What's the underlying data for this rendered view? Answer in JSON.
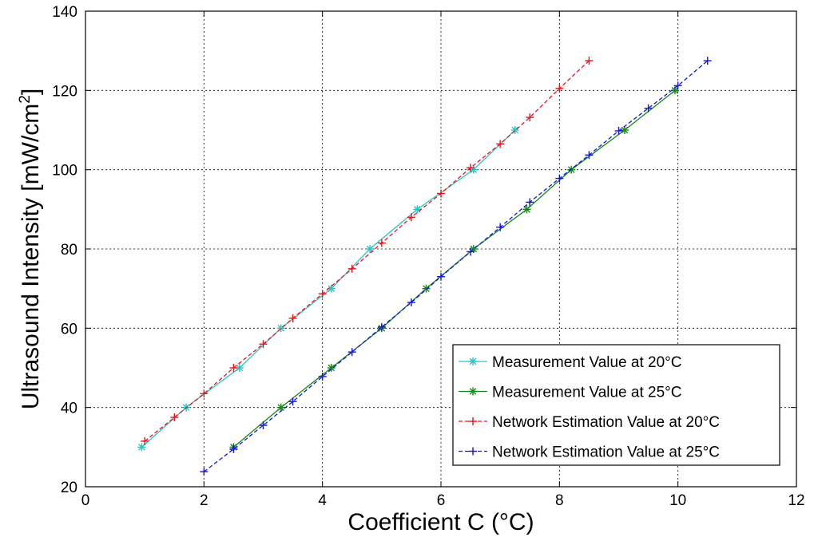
{
  "chart_data": {
    "type": "line",
    "title": "",
    "xlabel": "Coefficient C (°C)",
    "ylabel": "Ultrasound Intensity [mW/cm",
    "ylabel_sup": "2",
    "ylabel_end": "]",
    "xlim": [
      0,
      12
    ],
    "ylim": [
      20,
      140
    ],
    "xticks": [
      0,
      2,
      4,
      6,
      8,
      10,
      12
    ],
    "yticks": [
      20,
      40,
      60,
      80,
      100,
      120,
      140
    ],
    "xtick_labels": [
      "0",
      "2",
      "4",
      "6",
      "8",
      "10",
      "12"
    ],
    "ytick_labels": [
      "20",
      "40",
      "60",
      "80",
      "100",
      "120",
      "140"
    ],
    "grid": true,
    "legend_position": "bottom-right",
    "series": [
      {
        "name": "Measurement Value at 20°C",
        "color": "#2bc4c4",
        "marker": "asterisk",
        "line": "solid",
        "x": [
          0.95,
          1.7,
          2.6,
          3.3,
          4.15,
          4.8,
          5.6,
          6.55,
          7.25
        ],
        "y": [
          30,
          40,
          50,
          60,
          70,
          80,
          90,
          100,
          110
        ]
      },
      {
        "name": "Measurement Value at 25°C",
        "color": "#148a14",
        "marker": "asterisk",
        "line": "solid",
        "x": [
          2.5,
          3.3,
          4.15,
          5.0,
          5.75,
          6.55,
          7.45,
          8.2,
          9.1,
          9.95
        ],
        "y": [
          30,
          40,
          50,
          60,
          70,
          80,
          90,
          100,
          110,
          120
        ]
      },
      {
        "name": "Network Estimation Value at 20°C",
        "color": "#e8141e",
        "marker": "plus",
        "line": "dashed",
        "x": [
          1.0,
          1.5,
          2.0,
          2.5,
          3.0,
          3.5,
          4.0,
          4.5,
          5.0,
          5.5,
          6.0,
          6.5,
          7.0,
          7.5,
          8.0,
          8.5
        ],
        "y": [
          31.5,
          37.5,
          43.5,
          50,
          56,
          62.5,
          68.7,
          75,
          81.5,
          88,
          94,
          100.5,
          106.5,
          113.2,
          120.5,
          127.5
        ]
      },
      {
        "name": "Network Estimation Value at 25°C",
        "color": "#1414dc",
        "marker": "plus",
        "line": "dashed",
        "x": [
          2.0,
          2.5,
          3.0,
          3.5,
          4.0,
          4.5,
          5.0,
          5.5,
          6.0,
          6.5,
          7.0,
          7.5,
          8.0,
          8.5,
          9.0,
          9.5,
          10.0,
          10.5
        ],
        "y": [
          23.8,
          29.5,
          35.5,
          41.5,
          47.8,
          54,
          60.3,
          66.5,
          73,
          79.3,
          85.5,
          91.8,
          97.8,
          103.7,
          109.8,
          115.5,
          121.2,
          127.5
        ]
      }
    ]
  }
}
